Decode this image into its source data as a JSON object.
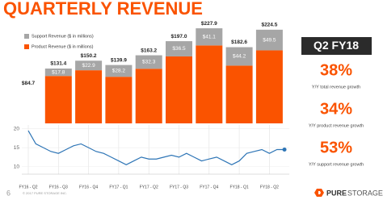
{
  "title": "QUARTERLY REVENUE",
  "chart_data": [
    {
      "type": "bar",
      "stacked": true,
      "categories": [
        "FY16 - Q2",
        "FY16 - Q3",
        "FY16 - Q4",
        "FY17 - Q1",
        "FY17 - Q2",
        "FY17 - Q3",
        "FY17 - Q4",
        "FY18 - Q1",
        "FY18 - Q2"
      ],
      "series": [
        {
          "name": "Product Revenue ($ in millions)",
          "color": "#fa5300",
          "values": [
            null,
            113.6,
            127.3,
            111.7,
            130.9,
            160.5,
            186.8,
            138.4,
            175.0
          ]
        },
        {
          "name": "Support Revenue ($ in millions)",
          "color": "#a6a6a6",
          "values": [
            null,
            17.8,
            22.9,
            28.2,
            32.3,
            36.5,
            41.1,
            44.2,
            49.5
          ],
          "value_labels": [
            null,
            "$17.8",
            "$22.9",
            "$28.2",
            "$32.3",
            "$36.5",
            "$41.1",
            "$44.2",
            "$49.5"
          ]
        }
      ],
      "totals": {
        "values": [
          84.7,
          131.4,
          150.2,
          139.9,
          163.2,
          197.0,
          227.9,
          182.6,
          224.5
        ],
        "value_labels": [
          "$84.7",
          "$131.4",
          "$150.2",
          "$139.9",
          "$163.2",
          "$197.0",
          "$227.9",
          "$182.6",
          "$224.5"
        ]
      },
      "ylim": [
        0,
        230
      ]
    },
    {
      "type": "line",
      "color": "#2e75b6",
      "x": [
        0,
        0.25,
        0.5,
        0.75,
        1,
        1.25,
        1.5,
        1.75,
        2,
        2.25,
        2.5,
        2.75,
        3,
        3.25,
        3.5,
        3.75,
        4,
        4.25,
        4.5,
        4.75,
        5,
        5.25,
        5.5,
        5.75,
        6,
        6.25,
        6.5,
        6.75,
        7,
        7.25,
        7.5,
        7.75,
        8,
        8.25,
        8.5
      ],
      "values": [
        19.5,
        16,
        15,
        14,
        13.5,
        14.5,
        15.5,
        16,
        15,
        14,
        13.5,
        12.5,
        11.5,
        10.5,
        11.5,
        12.5,
        12,
        12,
        12.5,
        13,
        12.5,
        13.5,
        12.5,
        11.5,
        12,
        12.5,
        11.5,
        10.5,
        11.5,
        13.5,
        14,
        14.5,
        13.5,
        14.5,
        14.5
      ],
      "xlim": [
        0,
        8.5
      ],
      "ylim": [
        8,
        21
      ],
      "yticks": [
        10,
        15,
        20
      ],
      "grid": true
    }
  ],
  "kpi_panel": {
    "period": "Q2 FY18",
    "metrics": [
      {
        "value": "38%",
        "label": "Y/Y total revenue growth"
      },
      {
        "value": "34%",
        "label": "Y/Y product revenue growth"
      },
      {
        "value": "53%",
        "label": "Y/Y support revenue growth"
      }
    ]
  },
  "footer": {
    "page_number": "6",
    "copyright": "© 2017 PURE STORAGE INC.",
    "logo_bold": "PURE",
    "logo_light": "STORAGE"
  }
}
